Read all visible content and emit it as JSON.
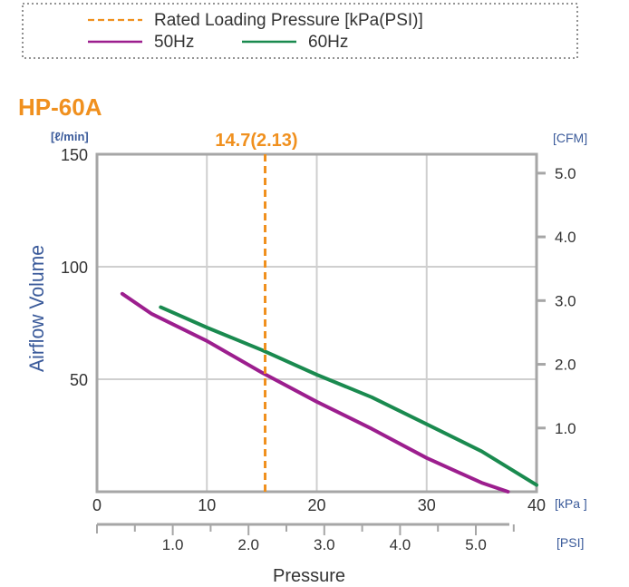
{
  "legend": {
    "rated_label": "Rated Loading Pressure [kPa(PSI)]",
    "s50_label": "50Hz",
    "s60_label": "60Hz"
  },
  "chart_data": {
    "type": "line",
    "title": "HP-60A",
    "ylabel": "Airflow Volume",
    "xlabel": "Pressure",
    "x_unit_primary": "[kPa ]",
    "x_unit_secondary": "[PSI]",
    "y_unit_left": "[ℓ/min]",
    "y_unit_right": "[CFM]",
    "xlim": [
      0,
      40
    ],
    "ylim": [
      0,
      150
    ],
    "x_ticks": [
      0,
      10,
      20,
      30,
      40
    ],
    "y_ticks": [
      50,
      100,
      150
    ],
    "psi_ticks": [
      "1.0",
      "2.0",
      "3.0",
      "4.0",
      "5.0"
    ],
    "cfm_ticks": [
      "1.0",
      "2.0",
      "3.0",
      "4.0",
      "5.0"
    ],
    "rated_pressure": {
      "x": 15.3,
      "label": "14.7(2.13)"
    },
    "grid": true,
    "series": [
      {
        "name": "50Hz",
        "color": "#9c1e8e",
        "x": [
          2.3,
          5,
          10,
          15,
          20,
          25,
          30,
          35,
          37.4
        ],
        "y": [
          88,
          79,
          67,
          53,
          40,
          28,
          15,
          4,
          0
        ]
      },
      {
        "name": "60Hz",
        "color": "#1a8a4f",
        "x": [
          5.8,
          10,
          15,
          20,
          25,
          30,
          35,
          40
        ],
        "y": [
          82,
          73,
          63,
          52,
          42,
          30,
          18,
          3
        ]
      }
    ],
    "colors": {
      "accent": "#f0901e",
      "frame": "#a6a6a6",
      "grid": "#cfcfcf",
      "axis_text": "#3a5a9a"
    }
  }
}
